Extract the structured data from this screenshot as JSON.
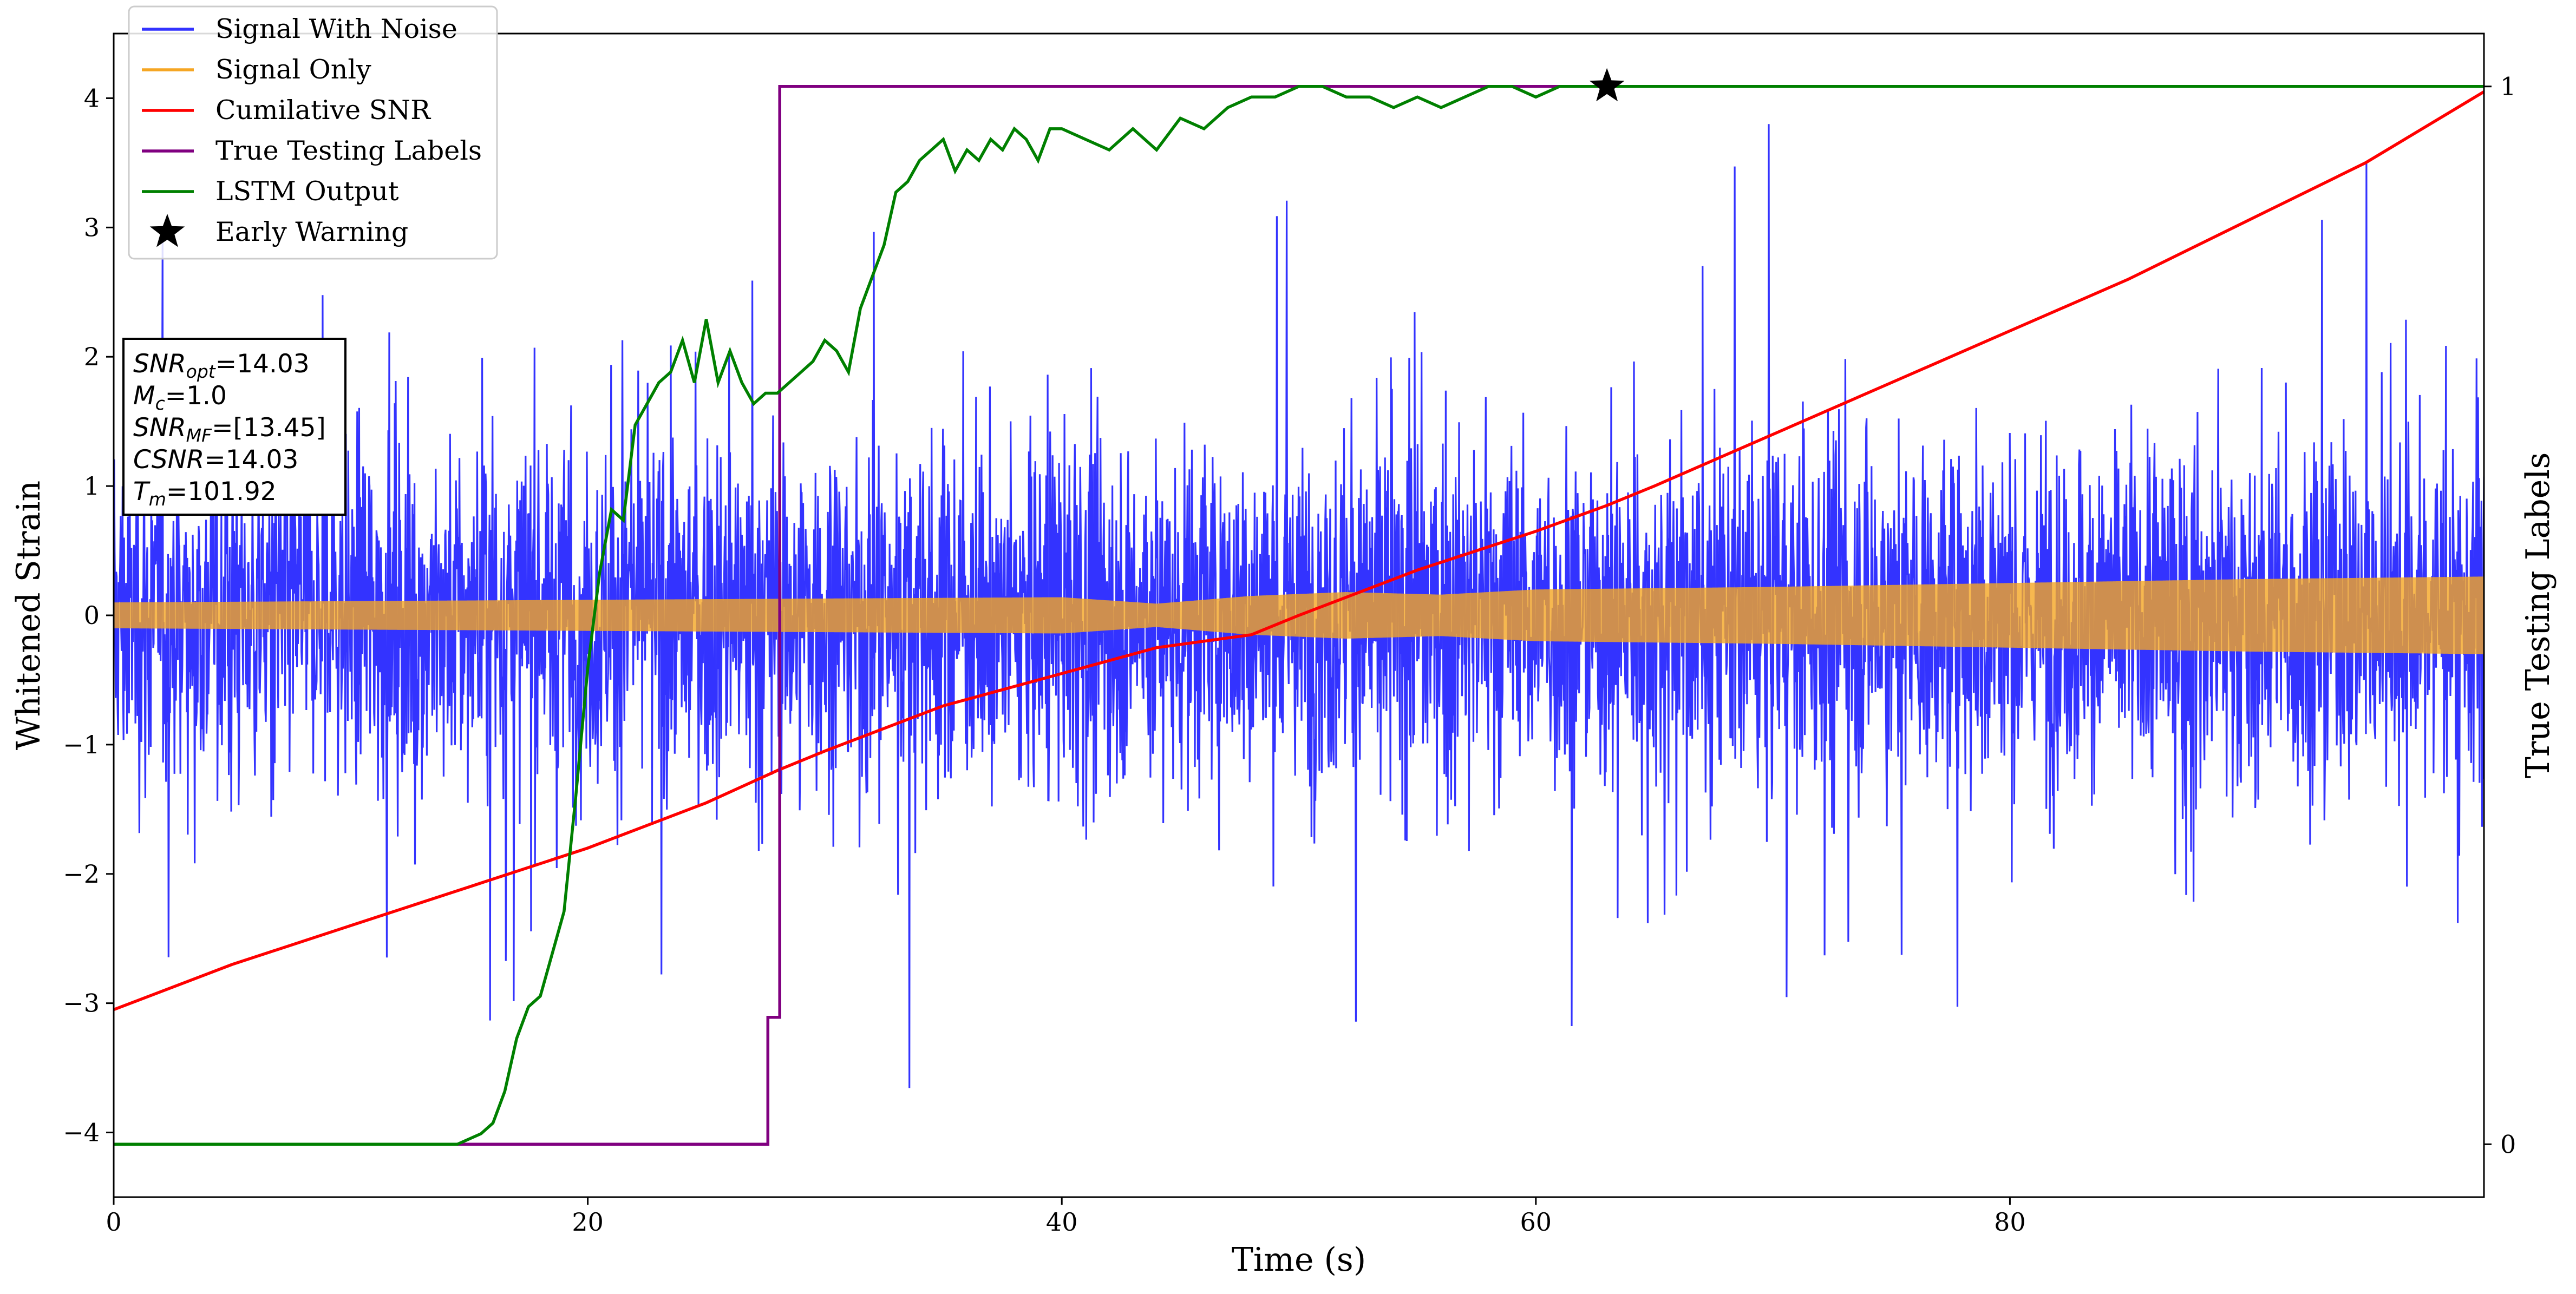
{
  "chart_data": {
    "type": "line",
    "xlabel": "Time (s)",
    "ylabel": "Whitened Strain",
    "y2label": "True Testing Labels",
    "xlim": [
      0,
      100
    ],
    "ylim": [
      -4.5,
      4.5
    ],
    "y2lim": [
      -0.05,
      1.05
    ],
    "xticks": [
      0,
      20,
      40,
      60,
      80
    ],
    "yticks": [
      -4,
      -3,
      -2,
      -1,
      0,
      1,
      2,
      3,
      4
    ],
    "y2ticks": [
      0,
      1
    ],
    "grid": false,
    "legend_position": "top-left",
    "legend": [
      {
        "label": "Signal With Noise",
        "color": "#3333ff",
        "marker": "line"
      },
      {
        "label": "Signal Only",
        "color": "#f5a623",
        "marker": "line"
      },
      {
        "label": "Cumilative SNR",
        "color": "#ff0000",
        "marker": "line"
      },
      {
        "label": "True Testing Labels",
        "color": "#800080",
        "marker": "line"
      },
      {
        "label": "LSTM Output",
        "color": "#008000",
        "marker": "line"
      },
      {
        "label": "Early Warning",
        "color": "#000000",
        "marker": "star"
      }
    ],
    "annotation_lines": [
      {
        "base": "SNR",
        "sub": "opt",
        "text": "=14.03"
      },
      {
        "base": "M",
        "sub": "c",
        "text": "=1.0"
      },
      {
        "base": "SNR",
        "sub": "MF",
        "text": "=[13.45]"
      },
      {
        "base": "CSNR",
        "sub": "",
        "text": "=14.03"
      },
      {
        "base": "T",
        "sub": "m",
        "text": "=101.92"
      }
    ],
    "series": [
      {
        "name": "Signal With Noise",
        "axis": "left",
        "kind": "noise",
        "approx_core_amplitude": 1.2,
        "approx_peak_range": [
          -4.1,
          3.8
        ]
      },
      {
        "name": "Signal Only",
        "axis": "left",
        "kind": "chirp_envelope",
        "envelope": {
          "x": [
            0,
            10,
            20,
            30,
            40,
            44,
            48,
            52,
            56,
            60,
            70,
            80,
            90,
            100
          ],
          "y": [
            0.1,
            0.11,
            0.12,
            0.13,
            0.14,
            0.09,
            0.15,
            0.18,
            0.16,
            0.2,
            0.22,
            0.25,
            0.28,
            0.3
          ]
        }
      },
      {
        "name": "Cumilative SNR",
        "axis": "left",
        "x": [
          0,
          5,
          10,
          15,
          20,
          25,
          28,
          30,
          35,
          40,
          44,
          48,
          50,
          55,
          60,
          63,
          65,
          70,
          75,
          80,
          85,
          90,
          95,
          100
        ],
        "y": [
          -3.05,
          -2.7,
          -2.4,
          -2.1,
          -1.8,
          -1.45,
          -1.2,
          -1.05,
          -0.7,
          -0.45,
          -0.25,
          -0.15,
          0.0,
          0.35,
          0.65,
          0.85,
          1.0,
          1.4,
          1.8,
          2.2,
          2.6,
          3.05,
          3.5,
          4.05
        ]
      },
      {
        "name": "True Testing Labels",
        "axis": "right",
        "x": [
          0,
          27.6,
          27.6,
          28.1,
          28.1,
          100
        ],
        "y": [
          0,
          0,
          0.12,
          0.12,
          1,
          1
        ]
      },
      {
        "name": "LSTM Output",
        "axis": "right",
        "x": [
          0,
          14.5,
          15,
          15.5,
          16,
          16.5,
          17,
          17.5,
          18,
          18.5,
          19,
          19.5,
          20,
          20.5,
          21,
          21.5,
          22,
          22.5,
          23,
          23.5,
          24,
          24.5,
          25,
          25.5,
          26,
          26.5,
          27,
          27.5,
          28,
          28.5,
          29,
          29.5,
          30,
          30.5,
          31,
          31.5,
          32,
          32.5,
          33,
          33.5,
          34,
          34.5,
          35,
          35.5,
          36,
          36.5,
          37,
          37.5,
          38,
          38.5,
          39,
          39.5,
          40,
          41,
          42,
          43,
          44,
          45,
          46,
          47,
          48,
          49,
          50,
          51,
          52,
          53,
          54,
          55,
          56,
          57,
          58,
          59,
          60,
          61,
          62,
          63,
          64,
          100
        ],
        "y": [
          0,
          0.0,
          0.005,
          0.01,
          0.02,
          0.05,
          0.1,
          0.13,
          0.14,
          0.18,
          0.22,
          0.33,
          0.45,
          0.54,
          0.6,
          0.59,
          0.68,
          0.7,
          0.72,
          0.73,
          0.76,
          0.72,
          0.78,
          0.72,
          0.75,
          0.72,
          0.7,
          0.71,
          0.71,
          0.72,
          0.73,
          0.74,
          0.76,
          0.75,
          0.73,
          0.79,
          0.82,
          0.85,
          0.9,
          0.91,
          0.93,
          0.94,
          0.95,
          0.92,
          0.94,
          0.93,
          0.95,
          0.94,
          0.96,
          0.95,
          0.93,
          0.96,
          0.96,
          0.95,
          0.94,
          0.96,
          0.94,
          0.97,
          0.96,
          0.98,
          0.99,
          0.99,
          1.0,
          1.0,
          0.99,
          0.99,
          0.98,
          0.99,
          0.98,
          0.99,
          1.0,
          1.0,
          0.99,
          1.0,
          1.0,
          1.0,
          1.0,
          1.0
        ]
      }
    ],
    "markers": [
      {
        "name": "Early Warning",
        "axis": "right",
        "x": 63,
        "y": 1.0
      }
    ]
  }
}
